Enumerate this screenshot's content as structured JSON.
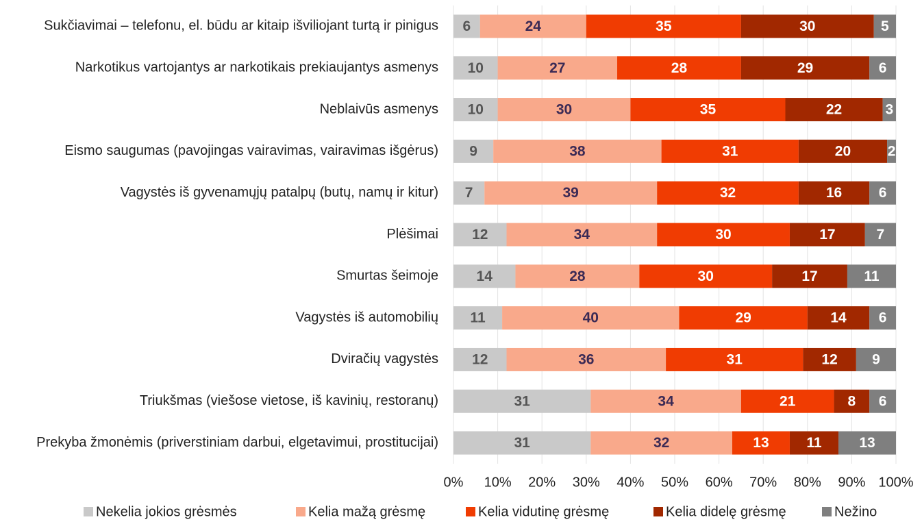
{
  "chart_data": {
    "type": "bar",
    "orientation": "horizontal",
    "stacked": true,
    "categories": [
      "Sukčiavimai – telefonu, el. būdu ar kitaip išviliojant turtą ir pinigus",
      "Narkotikus vartojantys ar narkotikais prekiaujantys asmenys",
      "Neblaivūs asmenys",
      "Eismo saugumas (pavojingas vairavimas, vairavimas išgėrus)",
      "Vagystės iš gyvenamųjų patalpų (butų, namų ir kitur)",
      "Plėšimai",
      "Smurtas šeimoje",
      "Vagystės iš automobilių",
      "Dviračių vagystės",
      "Triukšmas (viešose vietose, iš kavinių, restoranų)",
      "Prekyba žmonėmis (priverstiniam darbui, elgetavimui, prostitucijai)"
    ],
    "series": [
      {
        "name": "Nekelia jokios grėsmės",
        "color": "#c9c9c9",
        "values": [
          6,
          10,
          10,
          9,
          7,
          12,
          14,
          11,
          12,
          31,
          31
        ]
      },
      {
        "name": "Kelia mažą grėsmę",
        "color": "#f9a98b",
        "values": [
          24,
          27,
          30,
          38,
          39,
          34,
          28,
          40,
          36,
          34,
          32
        ]
      },
      {
        "name": "Kelia vidutinę grėsmę",
        "color": "#f03c02",
        "values": [
          35,
          28,
          35,
          31,
          32,
          30,
          30,
          29,
          31,
          21,
          13
        ]
      },
      {
        "name": "Kelia didelę grėsmę",
        "color": "#a12800",
        "values": [
          30,
          29,
          22,
          20,
          16,
          17,
          17,
          14,
          12,
          8,
          11
        ]
      },
      {
        "name": "Nežino",
        "color": "#7f7f7f",
        "values": [
          5,
          6,
          3,
          2,
          6,
          7,
          11,
          6,
          9,
          6,
          13
        ]
      }
    ],
    "xlim": [
      0,
      100
    ],
    "xticks": [
      {
        "value": 0,
        "label": "0%"
      },
      {
        "value": 10,
        "label": "10%"
      },
      {
        "value": 20,
        "label": "20%"
      },
      {
        "value": 30,
        "label": "30%"
      },
      {
        "value": 40,
        "label": "40%"
      },
      {
        "value": 50,
        "label": "50%"
      },
      {
        "value": 60,
        "label": "60%"
      },
      {
        "value": 70,
        "label": "70%"
      },
      {
        "value": 80,
        "label": "80%"
      },
      {
        "value": 90,
        "label": "90%"
      },
      {
        "value": 100,
        "label": "100%"
      }
    ],
    "grid": true,
    "legend": "bottom"
  }
}
